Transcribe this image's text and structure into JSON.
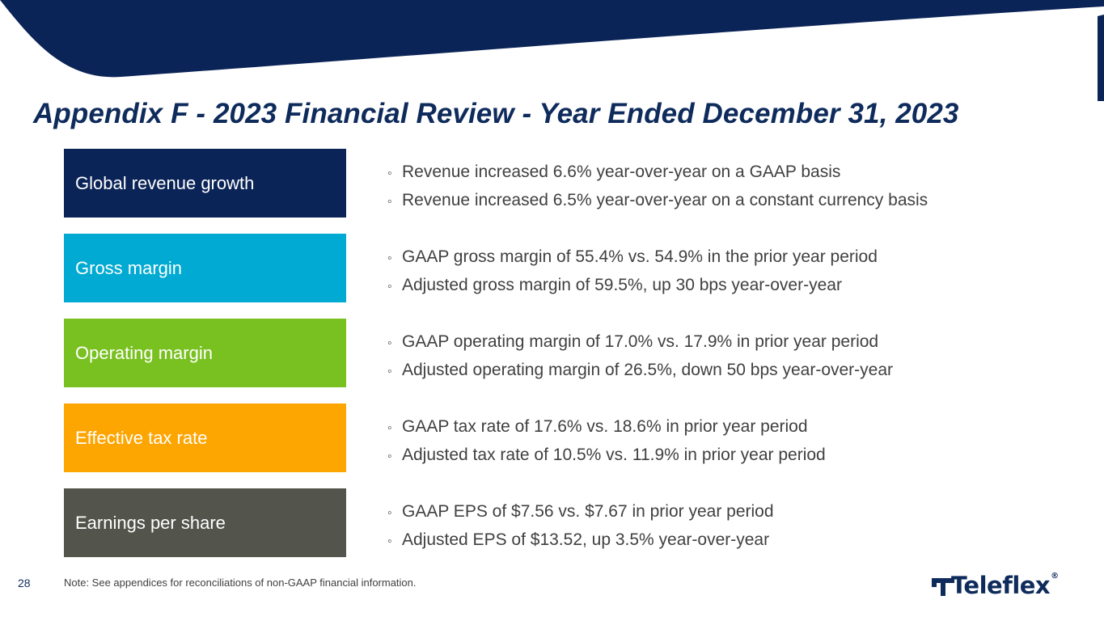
{
  "colors": {
    "navy": "#0e2b5c",
    "banner": "#0b2457",
    "cyan": "#00aad2",
    "green": "#79c021",
    "orange": "#fda500",
    "gray": "#53544c"
  },
  "title": "Appendix F - 2023 Financial Review - Year Ended December 31, 2023",
  "rows": [
    {
      "label": "Global revenue growth",
      "color": "#0b2457",
      "bullets": [
        "Revenue increased 6.6% year-over-year on a GAAP basis",
        "Revenue increased 6.5% year-over-year on a constant currency basis"
      ]
    },
    {
      "label": "Gross margin",
      "color": "#00aad2",
      "bullets": [
        "GAAP gross margin of 55.4% vs. 54.9% in the prior year period",
        "Adjusted gross margin of 59.5%, up 30 bps year-over-year"
      ]
    },
    {
      "label": "Operating margin",
      "color": "#79c021",
      "bullets": [
        "GAAP operating margin of 17.0% vs. 17.9% in prior year period",
        "Adjusted operating margin of 26.5%, down 50 bps year-over-year"
      ]
    },
    {
      "label": "Effective tax rate",
      "color": "#fda500",
      "bullets": [
        "GAAP tax rate of 17.6% vs. 18.6% in prior year period",
        "Adjusted tax rate of 10.5% vs. 11.9% in prior year period"
      ]
    },
    {
      "label": "Earnings per share",
      "color": "#53544c",
      "bullets": [
        "GAAP EPS of $7.56 vs. $7.67 in prior year period",
        "Adjusted EPS of $13.52, up 3.5% year-over-year"
      ]
    }
  ],
  "bullet_glyph": "◦",
  "page_number": "28",
  "note": "Note: See appendices for reconciliations of non-GAAP financial information.",
  "logo": {
    "text": "Teleflex",
    "registered": "®"
  }
}
